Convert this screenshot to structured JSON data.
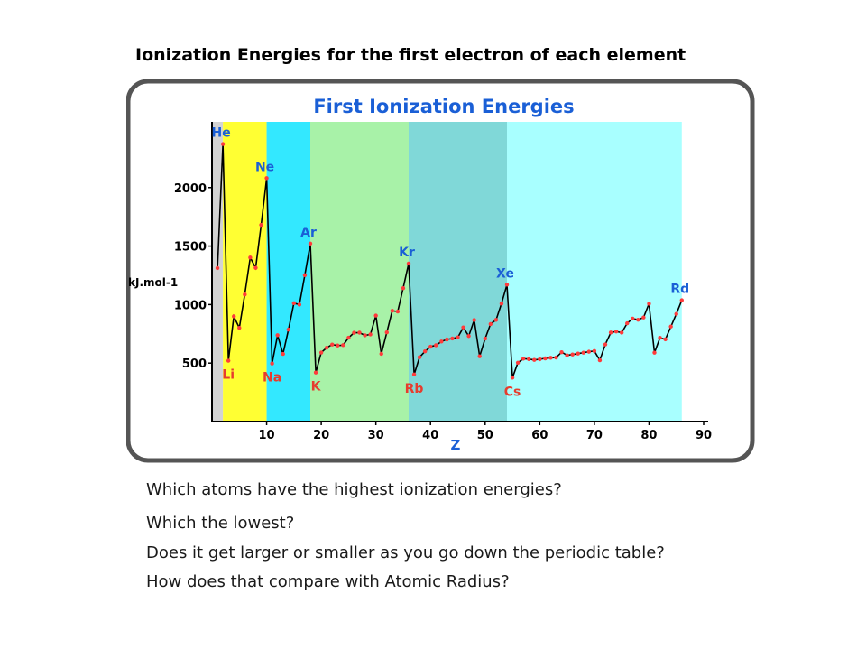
{
  "slide": {
    "title": "Ionization Energies for the first electron of each element",
    "questions": [
      "Which atoms have the highest ionization energies?",
      "Which the lowest?",
      "Does it get larger or smaller as you go down the periodic table?",
      "How does that compare with Atomic Radius?"
    ]
  },
  "chart_data": {
    "type": "line",
    "title": "First Ionization Energies",
    "xlabel": "Z",
    "ylabel": "kJ.mol-1",
    "xlim": [
      0,
      90
    ],
    "ylim": [
      0,
      2600
    ],
    "xticks": [
      10,
      20,
      30,
      40,
      50,
      60,
      70,
      80,
      90
    ],
    "yticks": [
      500,
      1000,
      1500,
      2000
    ],
    "grid": false,
    "colors": {
      "line": "#000000",
      "points": "#ff3b3b",
      "element_label_peak": "#1a5fd6",
      "element_label_valley": "#e63c2e",
      "title": "#1a5fd6",
      "axis": "#000000"
    },
    "period_bands": [
      {
        "from": 0,
        "to": 2,
        "color": "#d3d3d3"
      },
      {
        "from": 2,
        "to": 10,
        "color": "#ffff33"
      },
      {
        "from": 10,
        "to": 18,
        "color": "#33e8ff"
      },
      {
        "from": 18,
        "to": 36,
        "color": "#a8f2a8"
      },
      {
        "from": 36,
        "to": 54,
        "color": "#80d8d8"
      },
      {
        "from": 54,
        "to": 86,
        "color": "#a8ffff"
      }
    ],
    "x": [
      1,
      2,
      3,
      4,
      5,
      6,
      7,
      8,
      9,
      10,
      11,
      12,
      13,
      14,
      15,
      16,
      17,
      18,
      19,
      20,
      21,
      22,
      23,
      24,
      25,
      26,
      27,
      28,
      29,
      30,
      31,
      32,
      33,
      34,
      35,
      36,
      37,
      38,
      39,
      40,
      41,
      42,
      43,
      44,
      45,
      46,
      47,
      48,
      49,
      50,
      51,
      52,
      53,
      54,
      55,
      56,
      57,
      58,
      59,
      60,
      61,
      62,
      63,
      64,
      65,
      66,
      67,
      68,
      69,
      70,
      71,
      72,
      73,
      74,
      75,
      76,
      77,
      78,
      79,
      80,
      81,
      82,
      83,
      84,
      85,
      86
    ],
    "y": [
      1312,
      2372,
      520,
      899,
      801,
      1086,
      1402,
      1314,
      1681,
      2081,
      496,
      738,
      578,
      786,
      1012,
      1000,
      1251,
      1521,
      419,
      590,
      631,
      658,
      650,
      653,
      717,
      759,
      760,
      737,
      745,
      906,
      579,
      762,
      947,
      941,
      1140,
      1351,
      403,
      550,
      600,
      640,
      652,
      684,
      702,
      710,
      720,
      805,
      731,
      868,
      558,
      709,
      834,
      869,
      1008,
      1170,
      376,
      503,
      538,
      534,
      527,
      533,
      540,
      545,
      547,
      593,
      566,
      573,
      581,
      589,
      597,
      603,
      524,
      659,
      761,
      770,
      760,
      840,
      880,
      870,
      890,
      1007,
      589,
      716,
      703,
      812,
      920,
      1037
    ],
    "labels": [
      {
        "text": "He",
        "x": 2,
        "y": 2372,
        "kind": "peak"
      },
      {
        "text": "Ne",
        "x": 10,
        "y": 2081,
        "kind": "peak"
      },
      {
        "text": "Ar",
        "x": 18,
        "y": 1521,
        "kind": "peak"
      },
      {
        "text": "Kr",
        "x": 36,
        "y": 1351,
        "kind": "peak"
      },
      {
        "text": "Xe",
        "x": 54,
        "y": 1170,
        "kind": "peak"
      },
      {
        "text": "Rd",
        "x": 86,
        "y": 1037,
        "kind": "peak"
      },
      {
        "text": "Li",
        "x": 3,
        "y": 520,
        "kind": "valley"
      },
      {
        "text": "Na",
        "x": 11,
        "y": 496,
        "kind": "valley"
      },
      {
        "text": "K",
        "x": 19,
        "y": 419,
        "kind": "valley"
      },
      {
        "text": "Rb",
        "x": 37,
        "y": 403,
        "kind": "valley"
      },
      {
        "text": "Cs",
        "x": 55,
        "y": 376,
        "kind": "valley"
      }
    ]
  }
}
